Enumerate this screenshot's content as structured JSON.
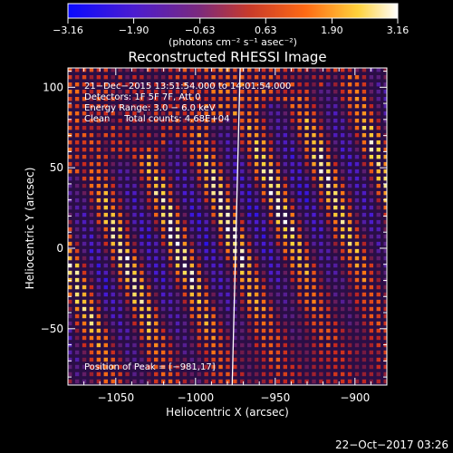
{
  "chart_data": {
    "type": "heatmap",
    "title": "Reconstructed RHESSI Image",
    "xlabel": "Heliocentric X (arcsec)",
    "ylabel": "Heliocentric Y (arcsec)",
    "xlim": [
      -1080,
      -880
    ],
    "ylim": [
      -85,
      112
    ],
    "x_ticks": [
      -1050,
      -1000,
      -950,
      -900
    ],
    "x_tick_labels": [
      "−1050",
      "−1000",
      "−950",
      "−900"
    ],
    "y_ticks": [
      100,
      50,
      0,
      -50
    ],
    "y_tick_labels": [
      "100",
      "50",
      "0",
      "−50"
    ],
    "colorbar": {
      "min": -3.16,
      "max": 3.16,
      "ticks": [
        -3.16,
        -1.9,
        -0.63,
        0.63,
        1.9,
        3.16
      ],
      "tick_labels": [
        "−3.16",
        "−1.90",
        "−0.63",
        "0.63",
        "1.90",
        "3.16"
      ],
      "label": "(photons cm⁻² s⁻¹ asec⁻²)",
      "colors": [
        "#1414ff",
        "#5a1ec8",
        "#9a3a3a",
        "#e0461e",
        "#ff9a14",
        "#ffe650",
        "#ffffff"
      ]
    },
    "annotations": [
      "21−Dec−2015 13:51:54.000 to 14:01:54.000",
      "Detectors: 1F 5F 7F, Att 0",
      "Energy Range: 3.0 − 6.0 keV",
      "Clean     Total counts: 4.68E+04"
    ],
    "peak_label": "Position of Peak = [−981,17]",
    "peak": [
      -981,
      17
    ],
    "limb_x_at_y": [
      [
        -972,
        112
      ],
      [
        -977,
        -85
      ]
    ],
    "colorscale_colors": {
      "background": "#000000",
      "text": "#ffffff",
      "limb": "#ffffff"
    }
  },
  "footer": {
    "timestamp": "22−Oct−2017 03:26"
  }
}
